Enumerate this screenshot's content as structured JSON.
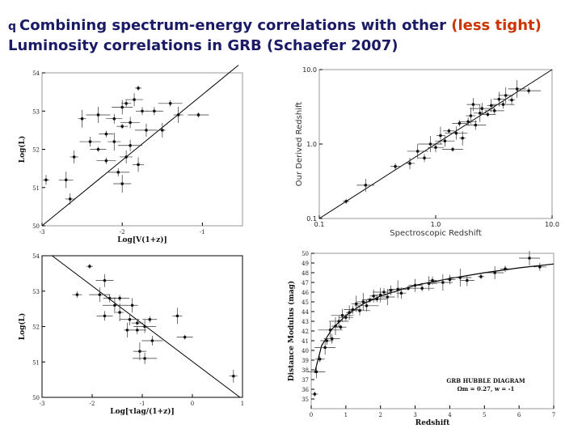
{
  "title": {
    "bullet": "q",
    "part1": "Combining spectrum-energy correlations with other ",
    "highlight": "(less tight)",
    "part2": "Luminosity correlations in GRB (Schaefer 2007)"
  },
  "chart_data": [
    {
      "type": "scatter",
      "xlabel": "Log[V(1+z)]",
      "ylabel": "Log(L)",
      "xlim": [
        -3,
        -0.5
      ],
      "ylim": [
        50,
        54
      ],
      "x_ticks": [
        "-3",
        "-2",
        "-1"
      ],
      "y_ticks": [
        "50",
        "51",
        "52",
        "53",
        "54"
      ],
      "fit_line": [
        [
          -3.0,
          50.0
        ],
        [
          -0.55,
          54.2
        ]
      ],
      "points": [
        [
          -1.8,
          53.6
        ],
        [
          -1.85,
          53.3
        ],
        [
          -1.95,
          53.2
        ],
        [
          -2.0,
          53.1
        ],
        [
          -1.75,
          53.0
        ],
        [
          -2.3,
          52.9
        ],
        [
          -2.1,
          52.8
        ],
        [
          -2.5,
          52.8
        ],
        [
          -1.9,
          52.7
        ],
        [
          -2.0,
          52.6
        ],
        [
          -1.7,
          52.5
        ],
        [
          -2.2,
          52.4
        ],
        [
          -1.5,
          52.5
        ],
        [
          -1.6,
          53.0
        ],
        [
          -1.3,
          52.9
        ],
        [
          -2.4,
          52.2
        ],
        [
          -2.1,
          52.2
        ],
        [
          -1.9,
          52.1
        ],
        [
          -2.3,
          52.0
        ],
        [
          -2.6,
          51.8
        ],
        [
          -2.2,
          51.7
        ],
        [
          -1.8,
          51.6
        ],
        [
          -2.05,
          51.4
        ],
        [
          -2.7,
          51.2
        ],
        [
          -2.95,
          51.2
        ],
        [
          -2.0,
          51.1
        ],
        [
          -2.65,
          50.7
        ],
        [
          -1.05,
          52.9
        ],
        [
          -1.95,
          51.8
        ],
        [
          -1.4,
          53.2
        ]
      ]
    },
    {
      "type": "scatter",
      "xlabel": "Redshift",
      "ylabel": "Distance Modulus (mag)",
      "xlim": [
        0,
        7
      ],
      "ylim": [
        34,
        50
      ],
      "x_ticks": [
        "0",
        "1",
        "2",
        "3",
        "4",
        "5",
        "6",
        "7"
      ],
      "y_ticks": [
        "35",
        "36",
        "37",
        "38",
        "39",
        "40",
        "41",
        "42",
        "43",
        "44",
        "45",
        "46",
        "47",
        "48",
        "49",
        "50"
      ],
      "annotation": [
        "GRB HUBBLE DIAGRAM",
        "Ωm = 0.27, w = -1"
      ],
      "points": [
        [
          0.1,
          35.5
        ],
        [
          0.15,
          37.8
        ],
        [
          0.25,
          39.1
        ],
        [
          0.4,
          40.3
        ],
        [
          0.45,
          41.0
        ],
        [
          0.55,
          42.1
        ],
        [
          0.6,
          41.2
        ],
        [
          0.7,
          42.5
        ],
        [
          0.8,
          43.0
        ],
        [
          0.85,
          42.4
        ],
        [
          0.9,
          43.6
        ],
        [
          1.0,
          43.4
        ],
        [
          1.1,
          43.9
        ],
        [
          1.2,
          44.2
        ],
        [
          1.3,
          44.8
        ],
        [
          1.4,
          44.1
        ],
        [
          1.5,
          45.0
        ],
        [
          1.6,
          44.6
        ],
        [
          1.7,
          45.2
        ],
        [
          1.8,
          45.6
        ],
        [
          1.9,
          45.3
        ],
        [
          2.0,
          45.7
        ],
        [
          2.1,
          46.0
        ],
        [
          2.2,
          45.5
        ],
        [
          2.3,
          46.2
        ],
        [
          2.5,
          46.3
        ],
        [
          2.6,
          45.9
        ],
        [
          2.8,
          46.4
        ],
        [
          3.0,
          46.7
        ],
        [
          3.2,
          46.4
        ],
        [
          3.4,
          46.9
        ],
        [
          3.5,
          47.2
        ],
        [
          3.8,
          47.0
        ],
        [
          4.0,
          47.3
        ],
        [
          4.3,
          47.5
        ],
        [
          4.5,
          47.2
        ],
        [
          4.9,
          47.6
        ],
        [
          5.3,
          48.0
        ],
        [
          5.6,
          48.4
        ],
        [
          6.3,
          49.5
        ],
        [
          6.6,
          48.6
        ]
      ],
      "model_curve": [
        [
          0.1,
          37.7
        ],
        [
          0.3,
          40.5
        ],
        [
          0.6,
          42.2
        ],
        [
          1.0,
          43.6
        ],
        [
          1.5,
          44.8
        ],
        [
          2.0,
          45.6
        ],
        [
          3.0,
          46.7
        ],
        [
          4.0,
          47.4
        ],
        [
          5.0,
          48.0
        ],
        [
          6.0,
          48.5
        ],
        [
          7.0,
          48.9
        ]
      ]
    },
    {
      "type": "scatter",
      "xlabel": "Spectroscopic Redshift",
      "ylabel": "Our Derived Redshift",
      "log_scale": true,
      "xlim": [
        0.1,
        10
      ],
      "ylim": [
        0.1,
        10
      ],
      "x_ticks": [
        "0.1",
        "1.0",
        "10.0"
      ],
      "y_ticks": [
        "0.1",
        "1.0",
        "10.0"
      ],
      "points": [
        [
          0.17,
          0.17
        ],
        [
          0.25,
          0.28
        ],
        [
          0.45,
          0.5
        ],
        [
          0.7,
          0.8
        ],
        [
          0.8,
          0.65
        ],
        [
          0.9,
          1.0
        ],
        [
          1.0,
          0.9
        ],
        [
          1.1,
          1.3
        ],
        [
          1.2,
          1.1
        ],
        [
          1.3,
          1.5
        ],
        [
          1.5,
          1.4
        ],
        [
          1.6,
          1.9
        ],
        [
          1.7,
          1.2
        ],
        [
          1.9,
          2.0
        ],
        [
          2.0,
          2.4
        ],
        [
          2.2,
          1.8
        ],
        [
          2.4,
          2.6
        ],
        [
          2.5,
          3.0
        ],
        [
          2.8,
          2.5
        ],
        [
          3.0,
          3.3
        ],
        [
          3.2,
          2.8
        ],
        [
          3.5,
          4.0
        ],
        [
          3.8,
          3.4
        ],
        [
          4.0,
          4.5
        ],
        [
          4.5,
          3.9
        ],
        [
          5.0,
          5.5
        ],
        [
          0.6,
          0.55
        ],
        [
          1.4,
          0.85
        ],
        [
          2.1,
          3.4
        ],
        [
          6.3,
          5.2
        ]
      ],
      "identity_line": [
        [
          0.1,
          0.1
        ],
        [
          10,
          10
        ]
      ]
    },
    {
      "type": "scatter",
      "xlabel": "Log[τlag/(1+z)]",
      "ylabel": "Log(L)",
      "xlim": [
        -3,
        1
      ],
      "ylim": [
        50,
        54
      ],
      "x_ticks": [
        "-3",
        "-2",
        "-1",
        "0",
        "1"
      ],
      "y_ticks": [
        "50",
        "51",
        "52",
        "53",
        "54"
      ],
      "fit_line": [
        [
          -2.8,
          54.0
        ],
        [
          0.95,
          50.0
        ]
      ],
      "points": [
        [
          -2.05,
          53.7
        ],
        [
          -1.75,
          53.3
        ],
        [
          -2.3,
          52.9
        ],
        [
          -1.85,
          52.9
        ],
        [
          -1.65,
          52.8
        ],
        [
          -1.55,
          52.6
        ],
        [
          -1.75,
          52.3
        ],
        [
          -1.45,
          52.4
        ],
        [
          -1.25,
          52.2
        ],
        [
          -1.1,
          52.1
        ],
        [
          -0.95,
          52.0
        ],
        [
          -0.85,
          52.2
        ],
        [
          -1.3,
          51.9
        ],
        [
          -1.1,
          51.9
        ],
        [
          -0.3,
          52.3
        ],
        [
          -0.8,
          51.6
        ],
        [
          -1.05,
          51.3
        ],
        [
          -0.95,
          51.1
        ],
        [
          -0.15,
          51.7
        ],
        [
          0.82,
          50.6
        ],
        [
          -1.45,
          52.8
        ],
        [
          -1.2,
          52.6
        ]
      ]
    }
  ]
}
